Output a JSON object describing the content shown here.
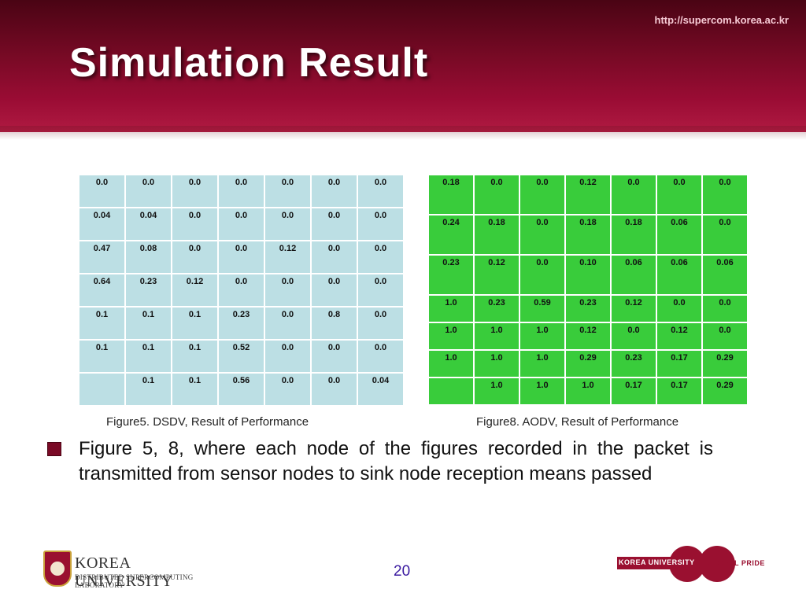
{
  "header": {
    "url": "http://supercom.korea.ac.kr",
    "title": "Simulation Result"
  },
  "dsdv_table": {
    "rows": [
      [
        "0.0",
        "0.0",
        "0.0",
        "0.0",
        "0.0",
        "0.0",
        "0.0"
      ],
      [
        "0.04",
        "0.04",
        "0.0",
        "0.0",
        "0.0",
        "0.0",
        "0.0"
      ],
      [
        "0.47",
        "0.08",
        "0.0",
        "0.0",
        "0.12",
        "0.0",
        "0.0"
      ],
      [
        "0.64",
        "0.23",
        "0.12",
        "0.0",
        "0.0",
        "0.0",
        "0.0"
      ],
      [
        "0.1",
        "0.1",
        "0.1",
        "0.23",
        "0.0",
        "0.8",
        "0.0"
      ],
      [
        "0.1",
        "0.1",
        "0.1",
        "0.52",
        "0.0",
        "0.0",
        "0.0"
      ],
      [
        "",
        "0.1",
        "0.1",
        "0.56",
        "0.0",
        "0.0",
        "0.04"
      ]
    ],
    "caption": "Figure5. DSDV, Result of Performance",
    "cell_color": "#bcdfe4"
  },
  "aodv_table": {
    "rows": [
      [
        "0.18",
        "0.0",
        "0.0",
        "0.12",
        "0.0",
        "0.0",
        "0.0"
      ],
      [
        "0.24",
        "0.18",
        "0.0",
        "0.18",
        "0.18",
        "0.06",
        "0.0"
      ],
      [
        "0.23",
        "0.12",
        "0.0",
        "0.10",
        "0.06",
        "0.06",
        "0.06"
      ],
      [
        "1.0",
        "0.23",
        "0.59",
        "0.23",
        "0.12",
        "0.0",
        "0.0"
      ],
      [
        "1.0",
        "1.0",
        "1.0",
        "0.12",
        "0.0",
        "0.12",
        "0.0"
      ],
      [
        "1.0",
        "1.0",
        "1.0",
        "0.29",
        "0.23",
        "0.17",
        "0.29"
      ],
      [
        "",
        "1.0",
        "1.0",
        "1.0",
        "0.17",
        "0.17",
        "0.29"
      ]
    ],
    "caption": "Figure8. AODV, Result of Performance",
    "cell_color": "#39cc3b"
  },
  "body": {
    "bullet_text": "Figure 5, 8, where each node of the figures recorded in the packet is transmitted from sensor nodes to sink node reception means passed"
  },
  "footer": {
    "page_number": "20",
    "university_name": "KOREA UNIVERSITY",
    "lab_name": "DISTRIBUTED SUPERCOMPUTING LABORATORY",
    "right_logo_text": "KOREA UNIVERSITY",
    "right_logo_tagline": "GLOBAL PRIDE"
  },
  "colors": {
    "header_dark": "#4a0414",
    "header_mid": "#9a0c34",
    "accent": "#7a0a26",
    "page_number": "#3a1aa0"
  }
}
